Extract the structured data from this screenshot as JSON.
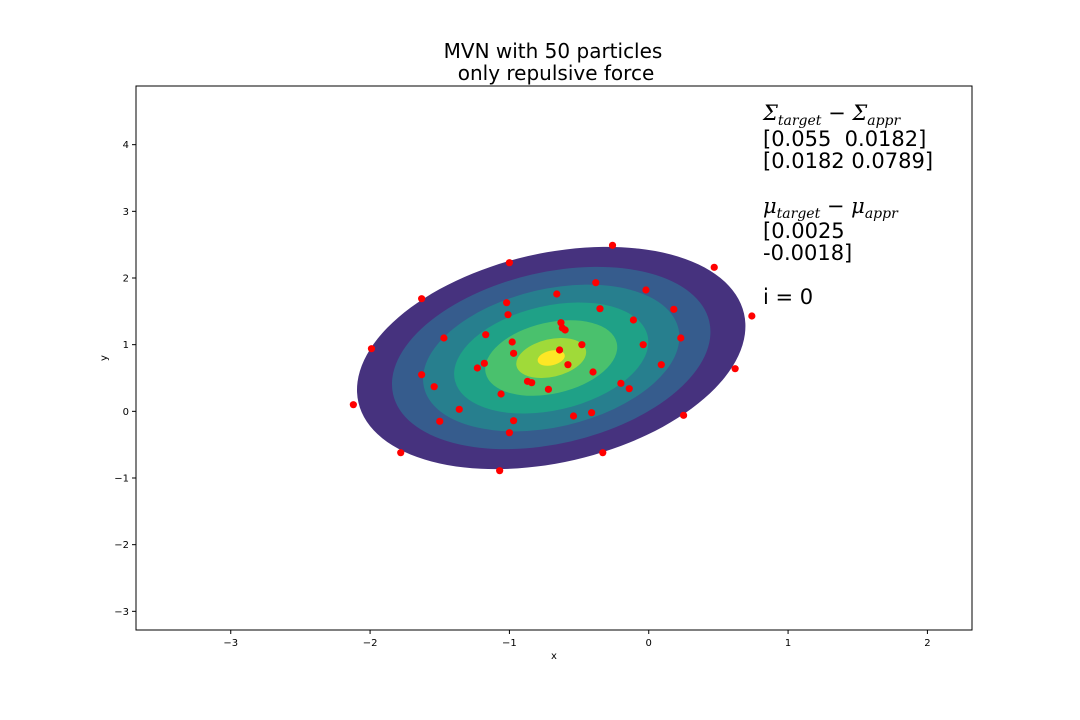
{
  "chart_data": {
    "type": "scatter",
    "title_lines": [
      "MVN with 50 particles",
      "only repulsive force"
    ],
    "xlabel": "x",
    "ylabel": "y",
    "xlim": [
      -3.68,
      2.32
    ],
    "ylim": [
      -3.28,
      4.88
    ],
    "xticks": [
      -3,
      -2,
      -1,
      0,
      1,
      2
    ],
    "yticks": [
      -3,
      -2,
      -1,
      0,
      1,
      2,
      3,
      4
    ],
    "grid": false,
    "density_contours": {
      "center": [
        -0.7,
        0.8
      ],
      "semi_axes": [
        1.42,
        0.75
      ],
      "angle_deg": 13,
      "level_colors": [
        "#46327e",
        "#365c8d",
        "#277f8e",
        "#1fa187",
        "#4ac16d",
        "#a0da39",
        "#fde725"
      ],
      "level_scales": [
        1.0,
        0.82,
        0.66,
        0.5,
        0.34,
        0.18,
        0.07
      ]
    },
    "particles": {
      "color": "#ff0000",
      "x": [
        -0.26,
        -1.0,
        0.47,
        -1.63,
        -0.38,
        -0.02,
        -0.66,
        -1.02,
        -0.35,
        0.18,
        -1.01,
        0.74,
        -0.63,
        -0.11,
        -0.6,
        -1.17,
        -0.98,
        -0.48,
        0.23,
        -1.47,
        -1.99,
        -0.04,
        -0.97,
        -0.64,
        -0.58,
        0.09,
        -1.18,
        -1.63,
        -1.23,
        -0.4,
        0.62,
        -0.87,
        -0.84,
        -0.2,
        -1.54,
        -0.72,
        -0.14,
        -1.06,
        -1.36,
        -2.12,
        0.25,
        -0.41,
        -0.54,
        -0.97,
        -1.5,
        -1.0,
        -1.78,
        -0.33,
        -1.07,
        -0.62
      ],
      "y": [
        2.49,
        2.23,
        2.16,
        1.69,
        1.93,
        1.82,
        1.76,
        1.63,
        1.54,
        1.53,
        1.45,
        1.43,
        1.33,
        1.37,
        1.22,
        1.15,
        1.04,
        1.0,
        1.1,
        1.1,
        0.94,
        1.0,
        0.87,
        0.92,
        0.7,
        0.7,
        0.72,
        0.55,
        0.65,
        0.59,
        0.64,
        0.45,
        0.43,
        0.42,
        0.37,
        0.33,
        0.34,
        0.26,
        0.03,
        0.1,
        -0.06,
        -0.02,
        -0.07,
        -0.14,
        -0.15,
        -0.32,
        -0.62,
        -0.62,
        -0.89,
        1.25
      ]
    }
  },
  "annotation": {
    "sigma_label_a": "Σ",
    "sigma_sub_a": "target",
    "sigma_minus": " − ",
    "sigma_label_b": "Σ",
    "sigma_sub_b": "appr",
    "sigma_row1": "[0.055  0.0182]",
    "sigma_row2": "[0.0182 0.0789]",
    "mu_label_a": "μ",
    "mu_sub_a": "target",
    "mu_minus": " − ",
    "mu_label_b": "μ",
    "mu_sub_b": "appr",
    "mu_row1": "[0.0025",
    "mu_row2": "-0.0018]",
    "iteration": "i = 0"
  }
}
